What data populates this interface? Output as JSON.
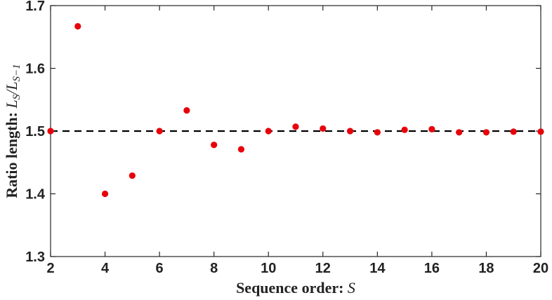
{
  "chart_data": {
    "type": "scatter",
    "x": [
      2,
      3,
      4,
      5,
      6,
      7,
      8,
      9,
      10,
      11,
      12,
      13,
      14,
      15,
      16,
      17,
      18,
      19,
      20
    ],
    "y": [
      1.5,
      1.667,
      1.4,
      1.429,
      1.5,
      1.533,
      1.478,
      1.471,
      1.5,
      1.507,
      1.504,
      1.5,
      1.498,
      1.502,
      1.503,
      1.498,
      1.498,
      1.499,
      1.499
    ],
    "reference_line": {
      "y": 1.5,
      "style": "dashed",
      "color": "#000000"
    },
    "xlim": [
      2,
      20
    ],
    "ylim": [
      1.3,
      1.7
    ],
    "xticks": [
      2,
      4,
      6,
      8,
      10,
      12,
      14,
      16,
      18,
      20
    ],
    "xtick_labels": [
      "2",
      "4",
      "6",
      "8",
      "10",
      "12",
      "14",
      "16",
      "18",
      "20"
    ],
    "yticks": [
      1.3,
      1.4,
      1.5,
      1.6,
      1.7
    ],
    "ytick_labels": [
      "1.3",
      "1.4",
      "1.5",
      "1.6",
      "1.7"
    ],
    "xlabel": "Sequence order:",
    "xlabel_math": "S",
    "ylabel": "Ratio length:",
    "ylabel_math_main": "L",
    "ylabel_math_sub": "S",
    "ylabel_math_sep": "/",
    "ylabel_math_main2": "L",
    "ylabel_math_sub2": "S−1",
    "marker_color": "#e8000b",
    "grid": false,
    "legend": "none"
  }
}
